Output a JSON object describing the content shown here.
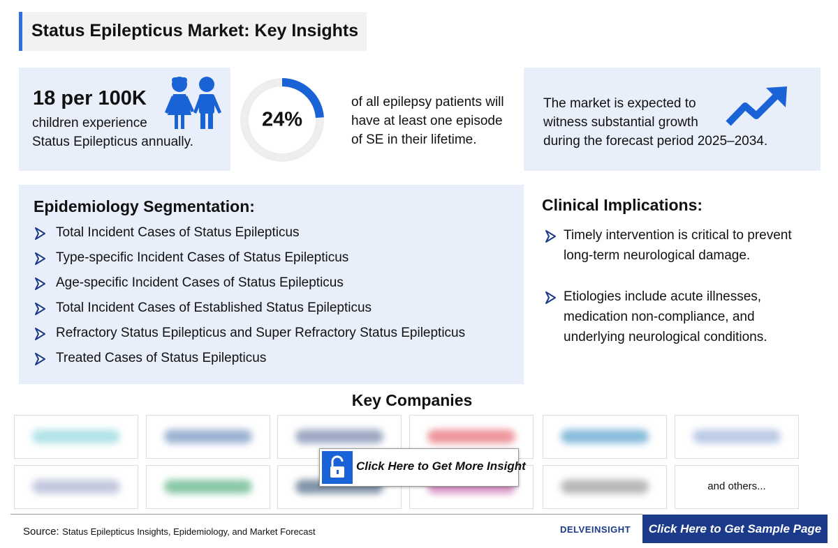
{
  "header": {
    "title": "Status Epilepticus Market: Key Insights"
  },
  "stats": {
    "incidence": {
      "headline": "18 per 100K",
      "text": [
        "children experience",
        "Status Epilepticus annually."
      ]
    },
    "lifetime": {
      "percent": {
        "value": 24,
        "label": "24%"
      },
      "text": [
        "of all epilepsy patients will",
        "have at least one episode",
        "of SE in their lifetime."
      ]
    },
    "growth": {
      "text": [
        "The market is expected to",
        "witness substantial growth",
        "during the forecast period 2025–2034."
      ]
    }
  },
  "segmentation": {
    "title": "Epidemiology Segmentation:",
    "items": [
      "Total Incident Cases of Status Epilepticus",
      "Type-specific Incident Cases of Status Epilepticus",
      "Age-specific Incident Cases of Status Epilepticus",
      "Total Incident Cases of Established Status Epilepticus",
      "Refractory Status Epilepticus and Super Refractory Status Epilepticus",
      "Treated Cases of Status Epilepticus"
    ]
  },
  "clinical": {
    "title": "Clinical Implications:",
    "items": [
      [
        "Timely intervention is critical to prevent",
        "long-term neurological damage."
      ],
      [
        "Etiologies include acute illnesses,",
        "medication non-compliance, and",
        "underlying neurological conditions."
      ]
    ]
  },
  "companies": {
    "title": "Key Companies",
    "others": "and others..."
  },
  "cta_insight": "Click Here to Get More Insight",
  "footer": {
    "source_label": "Source:",
    "source": "Status Epilepticus Insights, Epidemiology, and Market Forecast",
    "brand": "DELVEINSIGHT",
    "cta": "Click Here to Get Sample Page"
  }
}
